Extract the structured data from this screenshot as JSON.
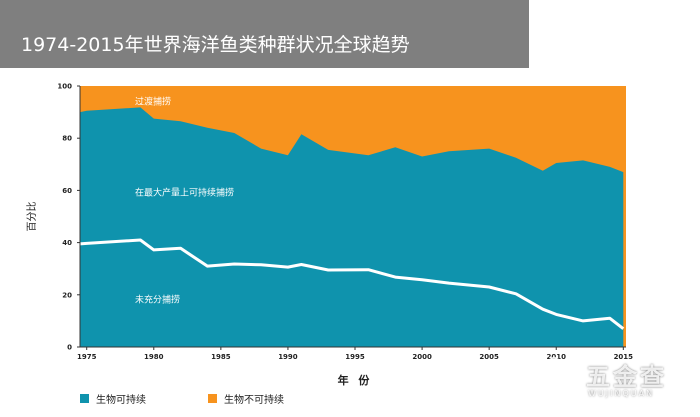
{
  "header": {
    "title": "1974-2015年世界海洋鱼类种群状况全球趋势"
  },
  "chart_data": {
    "type": "area",
    "title": "1974-2015年世界海洋鱼类种群状况全球趋势",
    "xlabel": "年 份",
    "ylabel": "百分比",
    "xlim": [
      1974.5,
      2015.2
    ],
    "ylim": [
      0,
      100
    ],
    "x_ticks": [
      "1975",
      "1980",
      "1985",
      "1990",
      "1995",
      "2000",
      "2005",
      "2010",
      "2015"
    ],
    "y_ticks": [
      "0",
      "20",
      "40",
      "60",
      "80",
      "100"
    ],
    "colors": {
      "sustainable": "#0f93ad",
      "unsustainable": "#f7931e",
      "line": "#ffffff"
    },
    "series": [
      {
        "name": "生物可持续",
        "x": [
          1974.5,
          1975,
          1979,
          1980,
          1982,
          1984,
          1986,
          1988,
          1990,
          1991,
          1993,
          1996,
          1998,
          2000,
          2002,
          2005,
          2007,
          2009,
          2010,
          2012,
          2014,
          2015
        ],
        "values": [
          90,
          90.5,
          91.8,
          87.5,
          86.5,
          84,
          82,
          76,
          73.5,
          81.5,
          75.5,
          73.5,
          76.5,
          73,
          75,
          76,
          72.5,
          67.5,
          70.5,
          71.5,
          69,
          67
        ]
      },
      {
        "name": "未充分捕捞",
        "x": [
          1974.5,
          1975,
          1979,
          1980,
          1982,
          1984,
          1986,
          1988,
          1990,
          1991,
          1993,
          1996,
          1998,
          2000,
          2002,
          2005,
          2007,
          2009,
          2010,
          2012,
          2014,
          2015
        ],
        "values": [
          39.5,
          39.7,
          41,
          37.2,
          37.8,
          31,
          31.8,
          31.5,
          30.6,
          31.6,
          29.5,
          29.6,
          26.8,
          25.8,
          24.5,
          23,
          20.4,
          14.5,
          12.5,
          10,
          11,
          7
        ]
      }
    ],
    "area_labels": {
      "unsustainable": "过渡捕捞",
      "sustainable_max": "在最大产量上可持续捕捞",
      "under": "未充分捕捞"
    },
    "legend": [
      {
        "label": "生物可持续",
        "color": "#0f93ad"
      },
      {
        "label": "生物不可持续",
        "color": "#f7931e"
      }
    ],
    "legend_position": "bottom-left"
  },
  "watermark": {
    "brand": "五金查",
    "sub": "WUJINQUAN"
  }
}
